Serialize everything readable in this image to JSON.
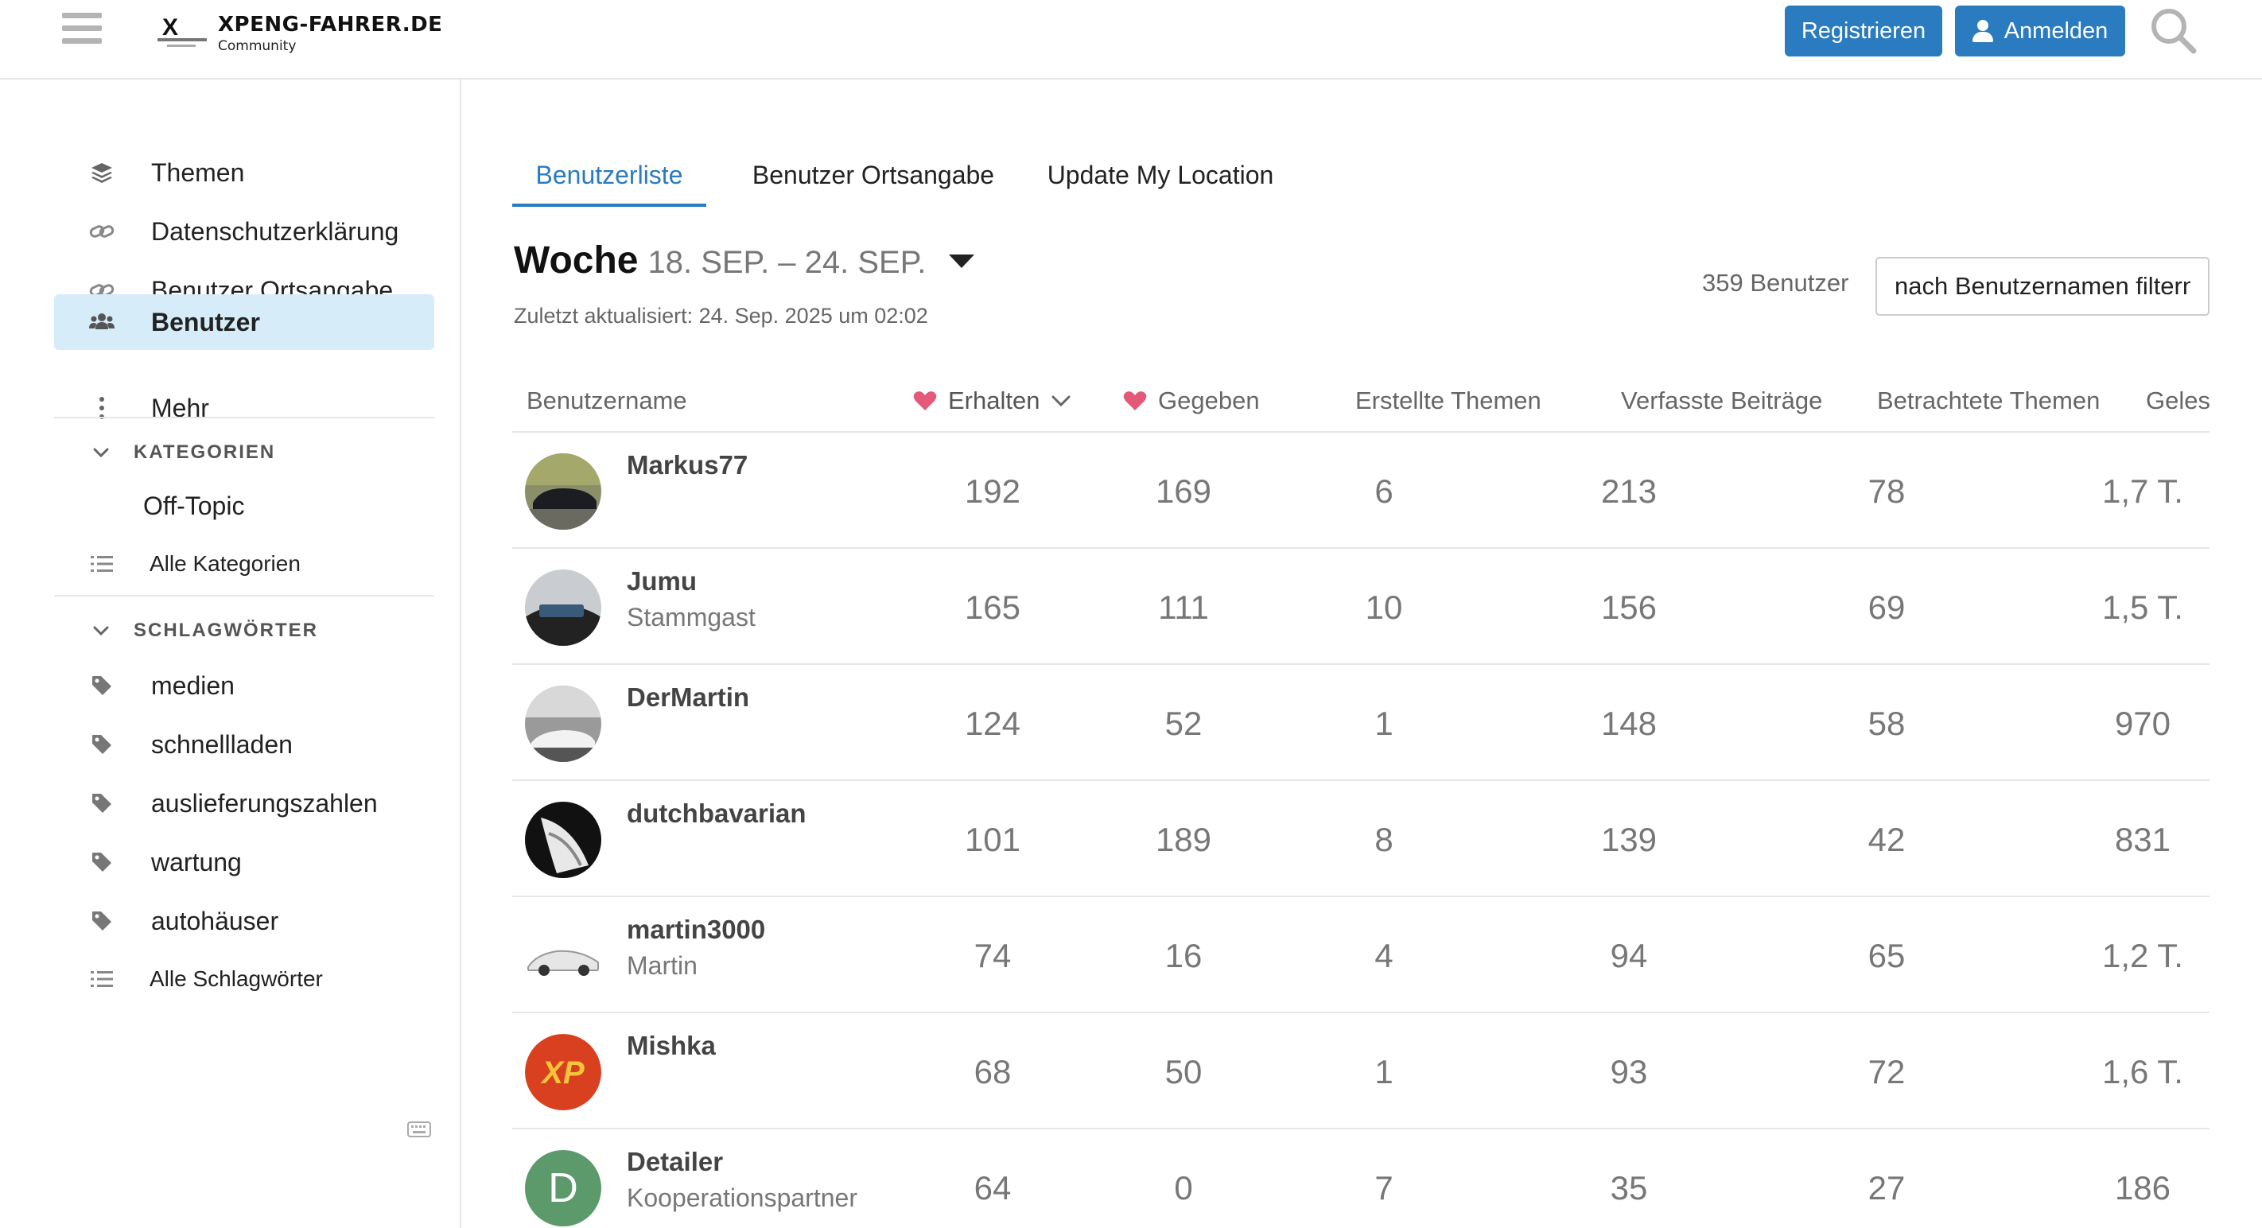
{
  "header": {
    "logo_title": "XPENG-FAHRER.DE",
    "logo_subtitle": "Community",
    "register_label": "Registrieren",
    "login_label": "Anmelden",
    "icons": [
      "menu-icon",
      "user-icon",
      "search-icon"
    ]
  },
  "sidebar": {
    "items": [
      {
        "label": "Themen",
        "icon": "layers-icon"
      },
      {
        "label": "Datenschutzerklärung",
        "icon": "link-icon"
      },
      {
        "label": "Benutzer Ortsangabe",
        "icon": "link-icon"
      },
      {
        "label": "Benutzer",
        "icon": "users-icon",
        "active": true
      },
      {
        "label": "Mehr",
        "icon": "more-vertical-icon"
      }
    ],
    "categories_heading": "KATEGORIEN",
    "categories": [
      "Off-Topic"
    ],
    "all_categories": "Alle Kategorien",
    "tags_heading": "SCHLAGWÖRTER",
    "tags": [
      "medien",
      "schnellladen",
      "auslieferungszahlen",
      "wartung",
      "autohäuser"
    ],
    "all_tags": "Alle Schlagwörter",
    "active_color": "#d6ecf9"
  },
  "tabs": [
    "Benutzerliste",
    "Benutzer Ortsangabe",
    "Update My Location"
  ],
  "period": {
    "title": "Woche",
    "range": "18. SEP. – 24. SEP.",
    "updated": "Zuletzt aktualisiert: 24. Sep. 2025 um 02:02"
  },
  "user_count": "359 Benutzer",
  "filter_placeholder": "nach Benutzernamen filtern",
  "columns": [
    "Benutzername",
    "Erhalten",
    "Gegeben",
    "Erstellte Themen",
    "Verfasste Beiträge",
    "Betrachtete Themen",
    "Gelesene Beiträge"
  ],
  "rows": [
    {
      "name": "Markus77",
      "title": "",
      "received": "192",
      "given": "169",
      "topics": "6",
      "posts": "213",
      "viewed": "78",
      "read": "1,7 T."
    },
    {
      "name": "Jumu",
      "title": "Stammgast",
      "received": "165",
      "given": "111",
      "topics": "10",
      "posts": "156",
      "viewed": "69",
      "read": "1,5 T."
    },
    {
      "name": "DerMartin",
      "title": "",
      "received": "124",
      "given": "52",
      "topics": "1",
      "posts": "148",
      "viewed": "58",
      "read": "970"
    },
    {
      "name": "dutchbavarian",
      "title": "",
      "received": "101",
      "given": "189",
      "topics": "8",
      "posts": "139",
      "viewed": "42",
      "read": "831"
    },
    {
      "name": "martin3000",
      "title": "Martin",
      "received": "74",
      "given": "16",
      "topics": "4",
      "posts": "94",
      "viewed": "65",
      "read": "1,2 T."
    },
    {
      "name": "Mishka",
      "title": "",
      "received": "68",
      "given": "50",
      "topics": "1",
      "posts": "93",
      "viewed": "72",
      "read": "1,6 T."
    },
    {
      "name": "Detailer",
      "title": "Kooperationspartner",
      "received": "64",
      "given": "0",
      "topics": "7",
      "posts": "35",
      "viewed": "27",
      "read": "186",
      "avatar_letter": "D"
    }
  ],
  "colors": {
    "accent": "#2a7bbf",
    "heart": "#e45977",
    "avatar_d": "#5c9a6b",
    "mishka": "#d9401f"
  }
}
